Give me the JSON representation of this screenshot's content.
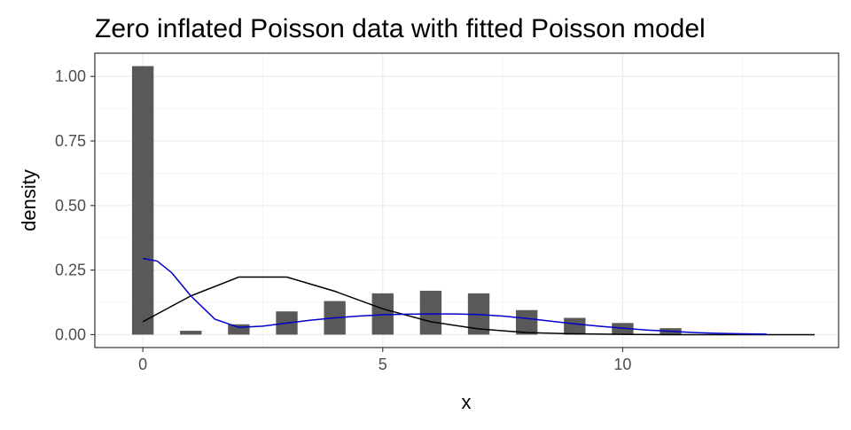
{
  "chart_data": {
    "type": "bar",
    "title": "Zero inflated Poisson data with fitted Poisson model",
    "xlabel": "x",
    "ylabel": "density",
    "xlim": [
      -1.0,
      14.5
    ],
    "ylim": [
      -0.05,
      1.09
    ],
    "x_ticks": [
      0,
      5,
      10
    ],
    "x_tick_labels": [
      "0",
      "5",
      "10"
    ],
    "y_ticks": [
      0.0,
      0.25,
      0.5,
      0.75,
      1.0
    ],
    "y_tick_labels": [
      "0.00",
      "0.25",
      "0.50",
      "0.75",
      "1.00"
    ],
    "grid": true,
    "bar_width": 0.45,
    "bar_color": "#595959",
    "bars": {
      "x": [
        0,
        1,
        2,
        3,
        4,
        5,
        6,
        7,
        8,
        9,
        10,
        11
      ],
      "values": [
        1.04,
        0.015,
        0.04,
        0.09,
        0.13,
        0.16,
        0.17,
        0.16,
        0.095,
        0.065,
        0.045,
        0.025
      ]
    },
    "series": [
      {
        "type": "line",
        "color": "#000000",
        "x": [
          0,
          1,
          2,
          3,
          4,
          5,
          6,
          7,
          8,
          9,
          10,
          11,
          12,
          13,
          14
        ],
        "values": [
          0.05,
          0.15,
          0.223,
          0.223,
          0.168,
          0.1,
          0.05,
          0.022,
          0.008,
          0.003,
          0.001,
          0.0,
          0.0,
          0.0,
          0.0
        ]
      },
      {
        "type": "line",
        "color": "#0000cc",
        "x": [
          0,
          0.3,
          0.6,
          1,
          1.5,
          2,
          2.5,
          3,
          3.5,
          4,
          4.5,
          5,
          5.5,
          6,
          6.5,
          7,
          7.5,
          8,
          8.5,
          9,
          9.5,
          10,
          10.5,
          11,
          11.5,
          12,
          12.5,
          13
        ],
        "values": [
          0.295,
          0.285,
          0.24,
          0.15,
          0.06,
          0.028,
          0.033,
          0.045,
          0.056,
          0.065,
          0.072,
          0.077,
          0.079,
          0.08,
          0.08,
          0.078,
          0.072,
          0.063,
          0.052,
          0.042,
          0.033,
          0.025,
          0.018,
          0.013,
          0.008,
          0.005,
          0.003,
          0.002
        ]
      }
    ]
  }
}
